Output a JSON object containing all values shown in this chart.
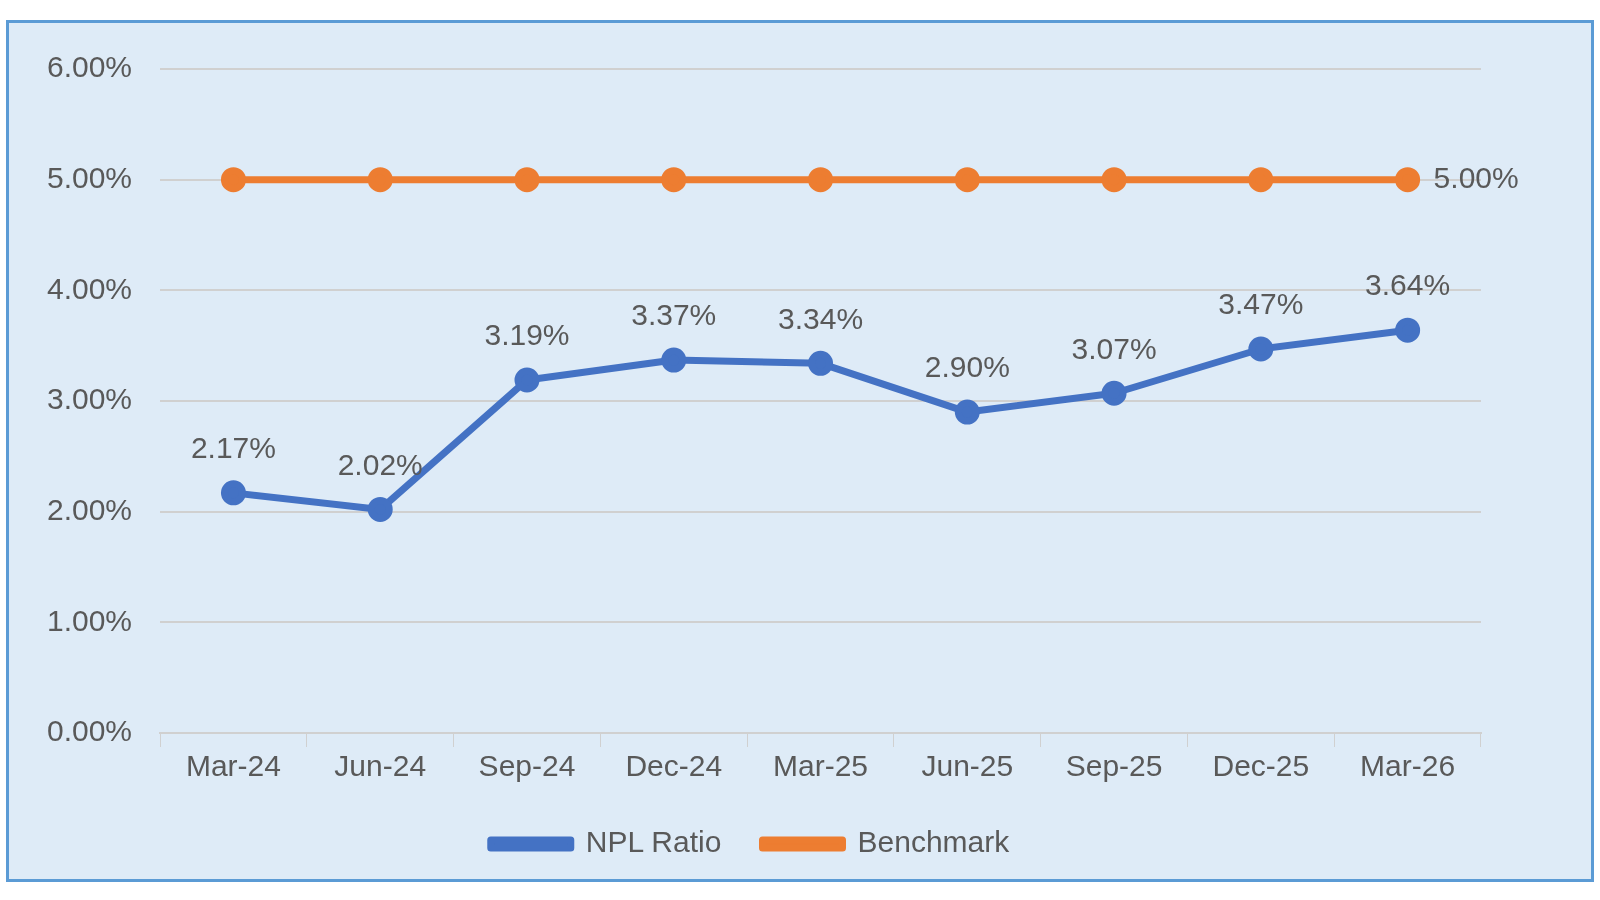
{
  "chart_data": {
    "type": "line",
    "categories": [
      "Mar-24",
      "Jun-24",
      "Sep-24",
      "Dec-24",
      "Mar-25",
      "Jun-25",
      "Sep-25",
      "Dec-25",
      "Mar-26"
    ],
    "series": [
      {
        "name": "NPL Ratio",
        "color": "#4472c4",
        "values": [
          2.17,
          2.02,
          3.19,
          3.37,
          3.34,
          2.9,
          3.07,
          3.47,
          3.64
        ],
        "value_labels": [
          "2.17%",
          "2.02%",
          "3.19%",
          "3.37%",
          "3.34%",
          "2.90%",
          "3.07%",
          "3.47%",
          "3.64%"
        ]
      },
      {
        "name": "Benchmark",
        "color": "#ed7d31",
        "values": [
          5,
          5,
          5,
          5,
          5,
          5,
          5,
          5,
          5
        ],
        "value_labels": [
          null,
          null,
          null,
          null,
          null,
          null,
          null,
          null,
          "5.00%"
        ]
      }
    ],
    "ylim": [
      0,
      6
    ],
    "yticks": [
      {
        "value": 0,
        "label": "0.00%"
      },
      {
        "value": 1,
        "label": "1.00%"
      },
      {
        "value": 2,
        "label": "2.00%"
      },
      {
        "value": 3,
        "label": "3.00%"
      },
      {
        "value": 4,
        "label": "4.00%"
      },
      {
        "value": 5,
        "label": "5.00%"
      },
      {
        "value": 6,
        "label": "6.00%"
      }
    ],
    "grid": "y",
    "legend": "bottom",
    "marker": "circle",
    "line_style": "solid"
  }
}
